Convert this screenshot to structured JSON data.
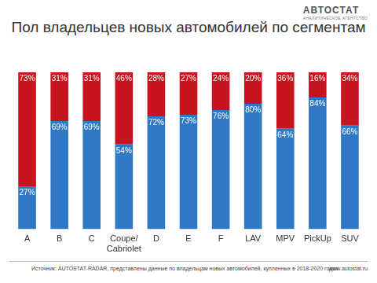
{
  "chart_data": {
    "type": "bar",
    "title": "Пол владельцев новых автомобилей по сегментам",
    "categories": [
      "A",
      "B",
      "C",
      "Coupe/\nCabriolet",
      "D",
      "E",
      "F",
      "LAV",
      "MPV",
      "PickUp",
      "SUV"
    ],
    "series": [
      {
        "color": "#2f78c6",
        "values": [
          27,
          69,
          69,
          54,
          72,
          73,
          76,
          80,
          64,
          84,
          66
        ],
        "value_labels": [
          "27%",
          "69%",
          "69%",
          "54%",
          "72%",
          "73%",
          "76%",
          "80%",
          "64%",
          "84%",
          "66%"
        ]
      },
      {
        "color": "#c8141e",
        "values": [
          73,
          31,
          31,
          46,
          28,
          27,
          24,
          20,
          36,
          16,
          34
        ],
        "value_labels": [
          "73%",
          "31%",
          "31%",
          "46%",
          "28%",
          "27%",
          "24%",
          "20%",
          "36%",
          "16%",
          "34%"
        ]
      }
    ],
    "ylim": [
      0,
      100
    ],
    "stacked": true,
    "data_labels": true,
    "grid": false,
    "tick_labels": "x"
  },
  "logo": {
    "name": "АВТОСТАТ",
    "tagline": "АНАЛИТИЧЕСКОЕ АГЕНТСТВО"
  },
  "footer": {
    "source": "Источник: AUTOSTAT-RADAR, представлены данные по владельцам новых автомобилей, купленных в 2018-2020 годах",
    "website": "www.autostat.ru"
  }
}
